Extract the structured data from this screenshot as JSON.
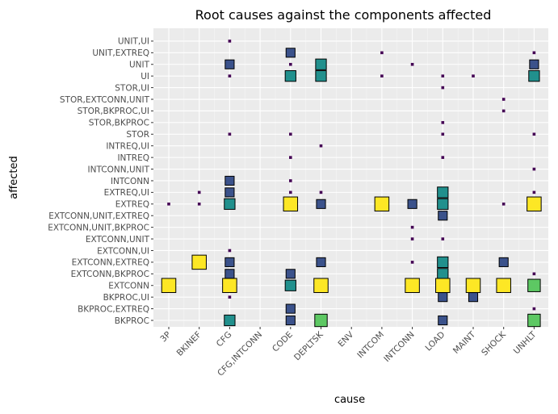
{
  "chart_data": {
    "type": "heatmap",
    "title": "Root causes against the components affected",
    "xlabel": "cause",
    "ylabel": "affected",
    "grid": true,
    "legend": "none",
    "x_categories": [
      "3P",
      "BKINEF",
      "CFG",
      "CFG,INTCONN",
      "CODE",
      "DEPLTSK",
      "ENV",
      "INTCOM",
      "INTCONN",
      "LOAD",
      "MAINT",
      "SHOCK",
      "UNHLT"
    ],
    "y_categories": [
      "BKPROC",
      "BKPROC,EXTREQ",
      "BKPROC,UI",
      "EXTCONN",
      "EXTCONN,BKPROC",
      "EXTCONN,EXTREQ",
      "EXTCONN,UI",
      "EXTCONN,UNIT",
      "EXTCONN,UNIT,BKPROC",
      "EXTCONN,UNIT,EXTREQ",
      "EXTREQ",
      "EXTREQ,UI",
      "INTCONN",
      "INTCONN,UNIT",
      "INTREQ",
      "INTREQ,UI",
      "STOR",
      "STOR,BKPROC",
      "STOR,BKPROC,UI",
      "STOR,EXTCONN,UNIT",
      "STOR,UI",
      "UI",
      "UNIT",
      "UNIT,EXTREQ",
      "UNIT,UI"
    ],
    "color_scale": [
      "#440154",
      "#3b528b",
      "#21908d",
      "#5dc863",
      "#fde725"
    ],
    "value_range": [
      1,
      5
    ],
    "points": [
      {
        "x": "CFG",
        "y": "UNIT,UI",
        "value": 1
      },
      {
        "x": "CODE",
        "y": "UNIT,EXTREQ",
        "value": 2
      },
      {
        "x": "INTCOM",
        "y": "UNIT,EXTREQ",
        "value": 1
      },
      {
        "x": "UNHLT",
        "y": "UNIT,EXTREQ",
        "value": 1
      },
      {
        "x": "CFG",
        "y": "UNIT",
        "value": 2
      },
      {
        "x": "CODE",
        "y": "UNIT",
        "value": 1
      },
      {
        "x": "DEPLTSK",
        "y": "UNIT",
        "value": 3
      },
      {
        "x": "INTCONN",
        "y": "UNIT",
        "value": 1
      },
      {
        "x": "UNHLT",
        "y": "UNIT",
        "value": 2
      },
      {
        "x": "CFG",
        "y": "UI",
        "value": 1
      },
      {
        "x": "CODE",
        "y": "UI",
        "value": 3
      },
      {
        "x": "DEPLTSK",
        "y": "UI",
        "value": 3
      },
      {
        "x": "INTCOM",
        "y": "UI",
        "value": 1
      },
      {
        "x": "LOAD",
        "y": "UI",
        "value": 1
      },
      {
        "x": "MAINT",
        "y": "UI",
        "value": 1
      },
      {
        "x": "UNHLT",
        "y": "UI",
        "value": 3
      },
      {
        "x": "LOAD",
        "y": "STOR,UI",
        "value": 1
      },
      {
        "x": "SHOCK",
        "y": "STOR,EXTCONN,UNIT",
        "value": 1
      },
      {
        "x": "SHOCK",
        "y": "STOR,BKPROC,UI",
        "value": 1
      },
      {
        "x": "LOAD",
        "y": "STOR,BKPROC",
        "value": 1
      },
      {
        "x": "CFG",
        "y": "STOR",
        "value": 1
      },
      {
        "x": "CODE",
        "y": "STOR",
        "value": 1
      },
      {
        "x": "LOAD",
        "y": "STOR",
        "value": 1
      },
      {
        "x": "UNHLT",
        "y": "STOR",
        "value": 1
      },
      {
        "x": "DEPLTSK",
        "y": "INTREQ,UI",
        "value": 1
      },
      {
        "x": "CODE",
        "y": "INTREQ",
        "value": 1
      },
      {
        "x": "LOAD",
        "y": "INTREQ",
        "value": 1
      },
      {
        "x": "UNHLT",
        "y": "INTCONN,UNIT",
        "value": 1
      },
      {
        "x": "CFG",
        "y": "INTCONN",
        "value": 2
      },
      {
        "x": "CODE",
        "y": "INTCONN",
        "value": 1
      },
      {
        "x": "BKINEF",
        "y": "EXTREQ,UI",
        "value": 1
      },
      {
        "x": "CFG",
        "y": "EXTREQ,UI",
        "value": 2
      },
      {
        "x": "CODE",
        "y": "EXTREQ,UI",
        "value": 1
      },
      {
        "x": "DEPLTSK",
        "y": "EXTREQ,UI",
        "value": 1
      },
      {
        "x": "LOAD",
        "y": "EXTREQ,UI",
        "value": 3
      },
      {
        "x": "UNHLT",
        "y": "EXTREQ,UI",
        "value": 1
      },
      {
        "x": "3P",
        "y": "EXTREQ",
        "value": 1
      },
      {
        "x": "BKINEF",
        "y": "EXTREQ",
        "value": 1
      },
      {
        "x": "CFG",
        "y": "EXTREQ",
        "value": 3
      },
      {
        "x": "CODE",
        "y": "EXTREQ",
        "value": 5
      },
      {
        "x": "DEPLTSK",
        "y": "EXTREQ",
        "value": 2
      },
      {
        "x": "INTCOM",
        "y": "EXTREQ",
        "value": 5
      },
      {
        "x": "INTCONN",
        "y": "EXTREQ",
        "value": 2
      },
      {
        "x": "LOAD",
        "y": "EXTREQ",
        "value": 3
      },
      {
        "x": "SHOCK",
        "y": "EXTREQ",
        "value": 1
      },
      {
        "x": "UNHLT",
        "y": "EXTREQ",
        "value": 5
      },
      {
        "x": "LOAD",
        "y": "EXTCONN,UNIT,EXTREQ",
        "value": 2
      },
      {
        "x": "INTCONN",
        "y": "EXTCONN,UNIT,BKPROC",
        "value": 1
      },
      {
        "x": "INTCONN",
        "y": "EXTCONN,UNIT",
        "value": 1
      },
      {
        "x": "LOAD",
        "y": "EXTCONN,UNIT",
        "value": 1
      },
      {
        "x": "CFG",
        "y": "EXTCONN,UI",
        "value": 1
      },
      {
        "x": "BKINEF",
        "y": "EXTCONN,EXTREQ",
        "value": 5
      },
      {
        "x": "CFG",
        "y": "EXTCONN,EXTREQ",
        "value": 2
      },
      {
        "x": "DEPLTSK",
        "y": "EXTCONN,EXTREQ",
        "value": 2
      },
      {
        "x": "INTCONN",
        "y": "EXTCONN,EXTREQ",
        "value": 1
      },
      {
        "x": "LOAD",
        "y": "EXTCONN,EXTREQ",
        "value": 3
      },
      {
        "x": "SHOCK",
        "y": "EXTCONN,EXTREQ",
        "value": 2
      },
      {
        "x": "CFG",
        "y": "EXTCONN,BKPROC",
        "value": 2
      },
      {
        "x": "CODE",
        "y": "EXTCONN,BKPROC",
        "value": 2
      },
      {
        "x": "LOAD",
        "y": "EXTCONN,BKPROC",
        "value": 3
      },
      {
        "x": "UNHLT",
        "y": "EXTCONN,BKPROC",
        "value": 1
      },
      {
        "x": "3P",
        "y": "EXTCONN",
        "value": 5
      },
      {
        "x": "CFG",
        "y": "EXTCONN",
        "value": 5
      },
      {
        "x": "CODE",
        "y": "EXTCONN",
        "value": 3
      },
      {
        "x": "DEPLTSK",
        "y": "EXTCONN",
        "value": 5
      },
      {
        "x": "INTCONN",
        "y": "EXTCONN",
        "value": 5
      },
      {
        "x": "LOAD",
        "y": "EXTCONN",
        "value": 5
      },
      {
        "x": "MAINT",
        "y": "EXTCONN",
        "value": 5
      },
      {
        "x": "SHOCK",
        "y": "EXTCONN",
        "value": 5
      },
      {
        "x": "UNHLT",
        "y": "EXTCONN",
        "value": 4
      },
      {
        "x": "CFG",
        "y": "BKPROC,UI",
        "value": 1
      },
      {
        "x": "LOAD",
        "y": "BKPROC,UI",
        "value": 2
      },
      {
        "x": "MAINT",
        "y": "BKPROC,UI",
        "value": 2
      },
      {
        "x": "CODE",
        "y": "BKPROC,EXTREQ",
        "value": 2
      },
      {
        "x": "UNHLT",
        "y": "BKPROC,EXTREQ",
        "value": 1
      },
      {
        "x": "CFG",
        "y": "BKPROC",
        "value": 3
      },
      {
        "x": "CODE",
        "y": "BKPROC",
        "value": 2
      },
      {
        "x": "DEPLTSK",
        "y": "BKPROC",
        "value": 4
      },
      {
        "x": "LOAD",
        "y": "BKPROC",
        "value": 2
      },
      {
        "x": "UNHLT",
        "y": "BKPROC",
        "value": 4
      }
    ]
  }
}
